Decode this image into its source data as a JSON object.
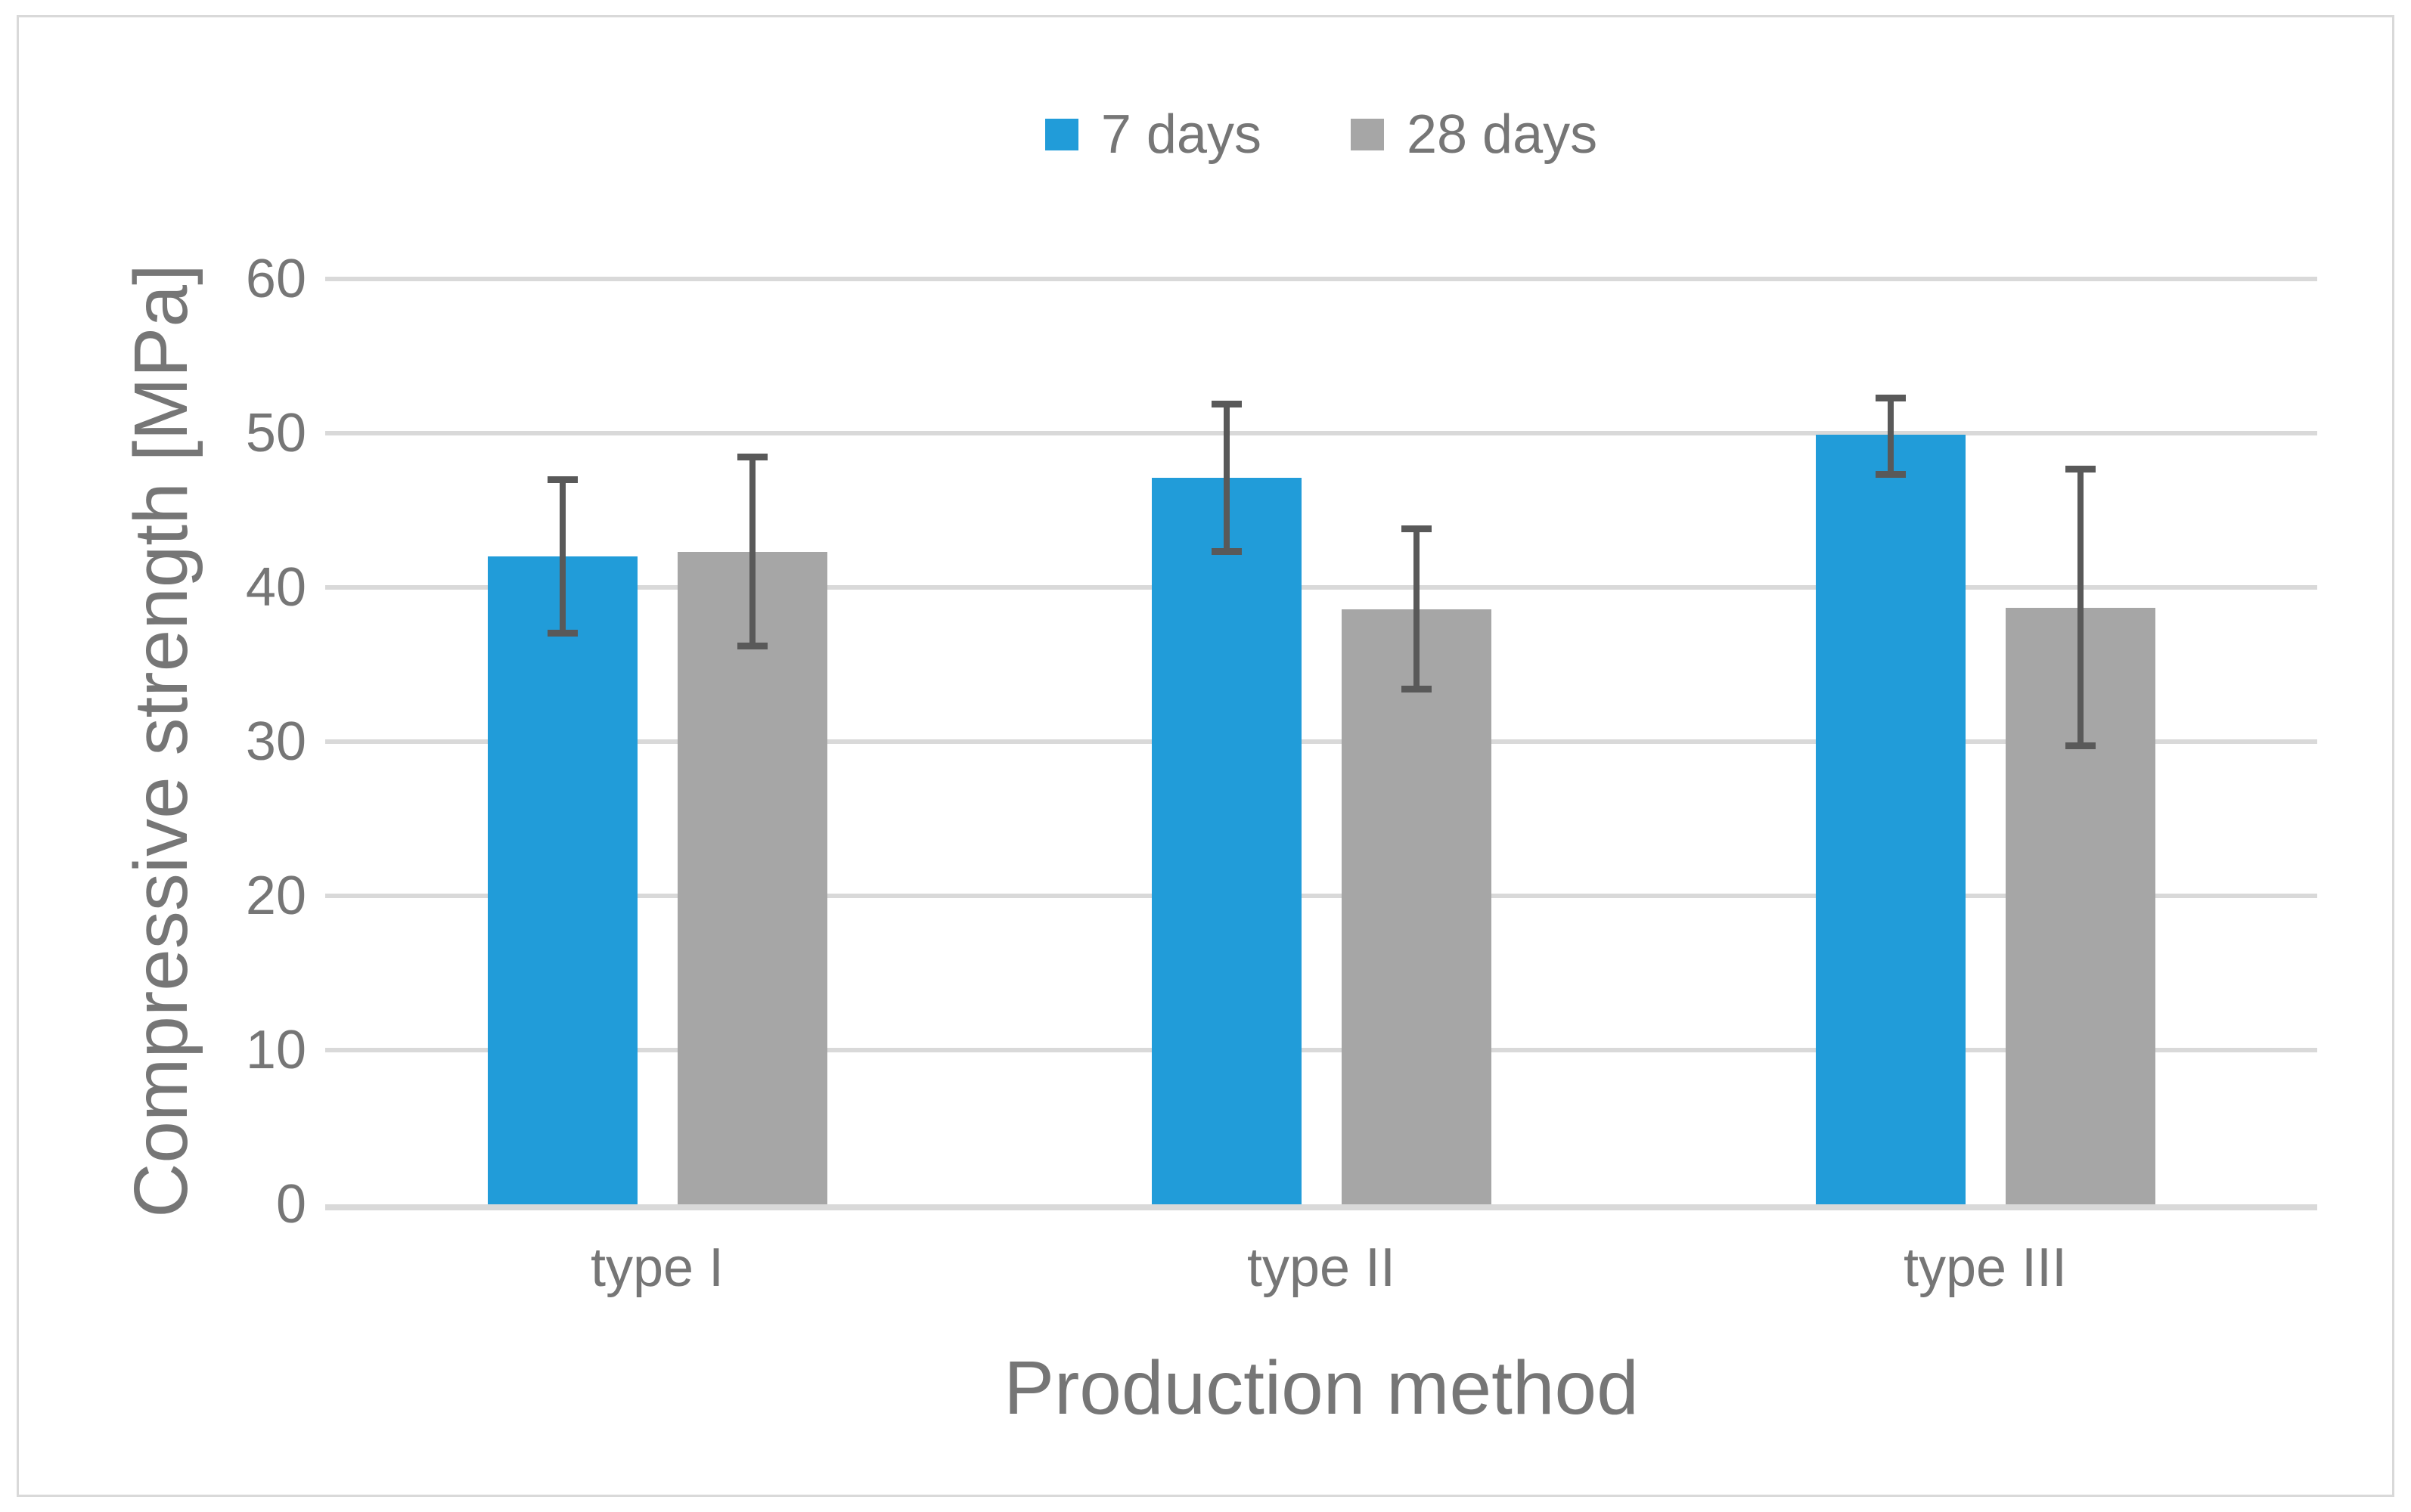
{
  "colors": {
    "series_blue": "#219CD9",
    "series_gray": "#A6A6A6",
    "error_bar": "#595959",
    "gridline": "#D9D9D9",
    "chart_border": "#D9D9D9",
    "text": "#767676",
    "background": "#FFFFFF"
  },
  "chart_data": {
    "type": "bar",
    "title": "",
    "xlabel": "Production method",
    "ylabel": "Compressive strength [MPa]",
    "categories": [
      "type I",
      "type II",
      "type III"
    ],
    "series": [
      {
        "name": "7 days",
        "color": "#219CD9",
        "values": [
          42.0,
          47.1,
          49.9
        ],
        "error_low": [
          36.8,
          42.1,
          47.1
        ],
        "error_high": [
          47.2,
          52.1,
          52.5
        ]
      },
      {
        "name": "28 days",
        "color": "#A6A6A6",
        "values": [
          42.3,
          38.6,
          38.7
        ],
        "error_low": [
          36.0,
          33.2,
          29.5
        ],
        "error_high": [
          48.7,
          44.0,
          47.9
        ]
      }
    ],
    "ylim": [
      0,
      60
    ],
    "yticks": [
      0,
      10,
      20,
      30,
      40,
      50,
      60
    ],
    "grid": true,
    "error_bars": true,
    "legend_position": "top-center"
  }
}
